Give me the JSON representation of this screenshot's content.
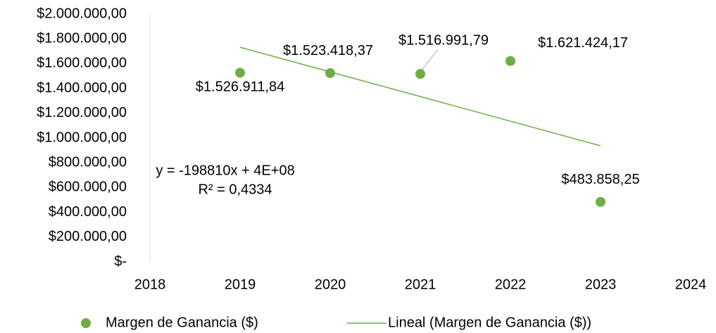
{
  "chart_data": {
    "type": "scatter",
    "x": [
      2019,
      2020,
      2021,
      2022,
      2023
    ],
    "series": [
      {
        "name": "Margen de Ganancia ($)",
        "color": "#70ad47",
        "values": [
          1526911.84,
          1523418.37,
          1516991.79,
          1621424.17,
          483858.25
        ],
        "value_labels": [
          "$1.526.911,84",
          "$1.523.418,37",
          "$1.516.991,79",
          "$1.621.424,17",
          "$483.858,25"
        ]
      },
      {
        "name": "Lineal (Margen de Ganancia ($))",
        "color": "#70ad47",
        "trendline": true,
        "x": [
          2019,
          2023
        ],
        "values": [
          1732141,
          936901
        ]
      }
    ],
    "annotations": [
      "y = -198810x + 4E+08",
      "R² = 0,4334"
    ],
    "xlim": [
      2018,
      2024
    ],
    "xticks": [
      2018,
      2019,
      2020,
      2021,
      2022,
      2023,
      2024
    ],
    "ylim": [
      0,
      2000000
    ],
    "yticks": [
      {
        "value": 0,
        "label": "$-"
      },
      {
        "value": 200000,
        "label": "$200.000,00"
      },
      {
        "value": 400000,
        "label": "$400.000,00"
      },
      {
        "value": 600000,
        "label": "$600.000,00"
      },
      {
        "value": 800000,
        "label": "$800.000,00"
      },
      {
        "value": 1000000,
        "label": "$1.000.000,00"
      },
      {
        "value": 1200000,
        "label": "$1.200.000,00"
      },
      {
        "value": 1400000,
        "label": "$1.400.000,00"
      },
      {
        "value": 1600000,
        "label": "$1.600.000,00"
      },
      {
        "value": 1800000,
        "label": "$1.800.000,00"
      },
      {
        "value": 2000000,
        "label": "$2.000.000,00"
      }
    ],
    "grid": false,
    "legend": "bottom"
  }
}
